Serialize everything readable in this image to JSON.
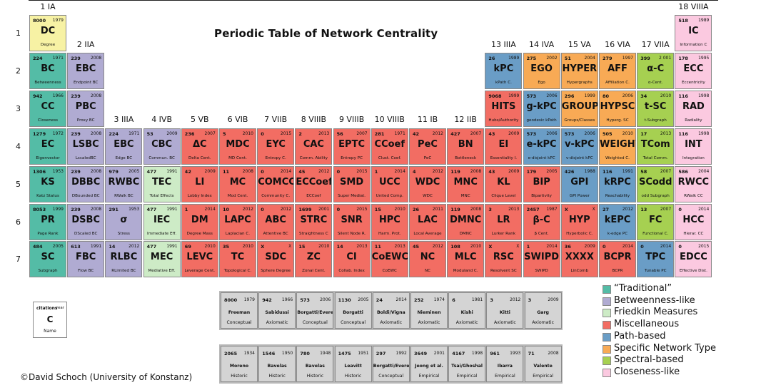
{
  "title": "Periodic Table of Network Centrality",
  "credit": "©David Schoch (University of Konstanz)",
  "colors": {
    "trad": "#54bca6",
    "betw": "#b0abd2",
    "fried": "#cdebc6",
    "misc": "#f26d63",
    "path": "#6a9dc6",
    "spec": "#f8aa55",
    "spect": "#a6d051",
    "close": "#fbc9e0",
    "cond": "#f7f2a4"
  },
  "group_headers": [
    "1 IA",
    "2 IIA",
    "3 IIIA",
    "4 IVB",
    "5 VB",
    "6 VIB",
    "7 VIIB",
    "8 VIIIB",
    "9 VIIIB",
    "10 VIIIB",
    "11 IB",
    "12 IIB",
    "13 IIIA",
    "14 IVA",
    "15 VA",
    "16 VIA",
    "17 VIIA",
    "18 VIIIA"
  ],
  "row_headers": [
    "1",
    "2",
    "3",
    "4",
    "5",
    "6",
    "7"
  ],
  "elements": [
    {
      "col": 1,
      "row": 1,
      "cat": "cond",
      "cit": "8000",
      "yr": "1979",
      "sym": "DC",
      "nm": "Degree"
    },
    {
      "col": 18,
      "row": 1,
      "cat": "close",
      "cit": "518",
      "yr": "1989",
      "sym": "IC",
      "nm": "Information C"
    },
    {
      "col": 1,
      "row": 2,
      "cat": "trad",
      "cit": "224",
      "yr": "1971",
      "sym": "BC",
      "nm": "Betweenness"
    },
    {
      "col": 2,
      "row": 2,
      "cat": "betw",
      "cit": "239",
      "yr": "2008",
      "sym": "EBC",
      "nm": "Endpoint BC"
    },
    {
      "col": 13,
      "row": 2,
      "cat": "path",
      "cit": "26",
      "yr": "1989",
      "sym": "kPC",
      "nm": "kPath C."
    },
    {
      "col": 14,
      "row": 2,
      "cat": "spec",
      "cit": "275",
      "yr": "2002",
      "sym": "EGO",
      "nm": "Ego"
    },
    {
      "col": 15,
      "row": 2,
      "cat": "spec",
      "cit": "51",
      "yr": "2004",
      "sym": "HYPER",
      "nm": "Hypergraphs"
    },
    {
      "col": 16,
      "row": 2,
      "cat": "spec",
      "cit": "279",
      "yr": "1997",
      "sym": "AFF",
      "nm": "Affiliation C."
    },
    {
      "col": 17,
      "row": 2,
      "cat": "spect",
      "cit": "399",
      "yr": "2 001",
      "sym": "α-C",
      "nm": "α-Cent."
    },
    {
      "col": 18,
      "row": 2,
      "cat": "close",
      "cit": "178",
      "yr": "1995",
      "sym": "ECC",
      "nm": "Eccentricity"
    },
    {
      "col": 1,
      "row": 3,
      "cat": "trad",
      "cit": "942",
      "yr": "1966",
      "sym": "CC",
      "nm": "Closeness"
    },
    {
      "col": 2,
      "row": 3,
      "cat": "betw",
      "cit": "239",
      "yr": "2008",
      "sym": "PBC",
      "nm": "Proxy BC"
    },
    {
      "col": 13,
      "row": 3,
      "cat": "misc",
      "cit": "9068",
      "yr": "1999",
      "sym": "HITS",
      "nm": "Hubs/Authority"
    },
    {
      "col": 14,
      "row": 3,
      "cat": "path",
      "cit": "573",
      "yr": "2006",
      "sym": "g-kPC",
      "nm": "geodesic kPath"
    },
    {
      "col": 15,
      "row": 3,
      "cat": "spec",
      "cit": "296",
      "yr": "1999",
      "sym": "GROUP",
      "nm": "Groups/Classes"
    },
    {
      "col": 16,
      "row": 3,
      "cat": "spec",
      "cit": "80",
      "yr": "2006",
      "sym": "HYPSC",
      "nm": "Hyperg. SC"
    },
    {
      "col": 17,
      "row": 3,
      "cat": "spect",
      "cit": "34",
      "yr": "2010",
      "sym": "t-SC",
      "nm": "t-Subgraph"
    },
    {
      "col": 18,
      "row": 3,
      "cat": "close",
      "cit": "116",
      "yr": "1998",
      "sym": "RAD",
      "nm": "Radiality"
    },
    {
      "col": 1,
      "row": 4,
      "cat": "trad",
      "cit": "1279",
      "yr": "1972",
      "sym": "EC",
      "nm": "Eigenvector"
    },
    {
      "col": 2,
      "row": 4,
      "cat": "betw",
      "cit": "239",
      "yr": "2008",
      "sym": "LSBC",
      "nm": "LscaledBC"
    },
    {
      "col": 3,
      "row": 4,
      "cat": "betw",
      "cit": "224",
      "yr": "1971",
      "sym": "EBC",
      "nm": "Edge BC"
    },
    {
      "col": 4,
      "row": 4,
      "cat": "betw",
      "cit": "53",
      "yr": "2009",
      "sym": "CBC",
      "nm": "Commun. BC"
    },
    {
      "col": 5,
      "row": 4,
      "cat": "misc",
      "cit": "236",
      "yr": "2007",
      "sym": "ΔC",
      "nm": "Delta Cent."
    },
    {
      "col": 6,
      "row": 4,
      "cat": "misc",
      "cit": "5",
      "yr": "2010",
      "sym": "MDC",
      "nm": "MD Cent."
    },
    {
      "col": 7,
      "row": 4,
      "cat": "misc",
      "cit": "0",
      "yr": "2015",
      "sym": "EYC",
      "nm": "Entropy C."
    },
    {
      "col": 8,
      "row": 4,
      "cat": "misc",
      "cit": "2",
      "yr": "2013",
      "sym": "CAC",
      "nm": "Comm. Ability"
    },
    {
      "col": 9,
      "row": 4,
      "cat": "misc",
      "cit": "56",
      "yr": "2007",
      "sym": "EPTC",
      "nm": "Entropy PC"
    },
    {
      "col": 10,
      "row": 4,
      "cat": "misc",
      "cit": "281",
      "yr": "1971",
      "sym": "CCoef",
      "nm": "Clust. Coef."
    },
    {
      "col": 11,
      "row": 4,
      "cat": "misc",
      "cit": "42",
      "yr": "2012",
      "sym": "PeC",
      "nm": "PeC"
    },
    {
      "col": 12,
      "row": 4,
      "cat": "misc",
      "cit": "427",
      "yr": "2007",
      "sym": "BN",
      "nm": "Bottleneck"
    },
    {
      "col": 13,
      "row": 4,
      "cat": "misc",
      "cit": "43",
      "yr": "2009",
      "sym": "EI",
      "nm": "Essentiality I."
    },
    {
      "col": 14,
      "row": 4,
      "cat": "path",
      "cit": "573",
      "yr": "2006",
      "sym": "e-kPC",
      "nm": "e-disjoint kPC"
    },
    {
      "col": 15,
      "row": 4,
      "cat": "path",
      "cit": "573",
      "yr": "2006",
      "sym": "v-kPC",
      "nm": "v-disjoint kPC"
    },
    {
      "col": 16,
      "row": 4,
      "cat": "spec",
      "cit": "505",
      "yr": "2010",
      "sym": "WEIGHT",
      "nm": "Weighted C."
    },
    {
      "col": 17,
      "row": 4,
      "cat": "spect",
      "cit": "17",
      "yr": "2013",
      "sym": "TCom",
      "nm": "Total Comm."
    },
    {
      "col": 18,
      "row": 4,
      "cat": "close",
      "cit": "116",
      "yr": "1998",
      "sym": "INT",
      "nm": "Integration"
    },
    {
      "col": 1,
      "row": 5,
      "cat": "trad",
      "cit": "1306",
      "yr": "1953",
      "sym": "KS",
      "nm": "Katz Status"
    },
    {
      "col": 2,
      "row": 5,
      "cat": "betw",
      "cit": "239",
      "yr": "2008",
      "sym": "DBBC",
      "nm": "DBounded BC"
    },
    {
      "col": 3,
      "row": 5,
      "cat": "betw",
      "cit": "979",
      "yr": "2005",
      "sym": "RWBC",
      "nm": "RWalk BC"
    },
    {
      "col": 4,
      "row": 5,
      "cat": "fried",
      "cit": "477",
      "yr": "1991",
      "sym": "TEC",
      "nm": "Total Effects"
    },
    {
      "col": 5,
      "row": 5,
      "cat": "misc",
      "cit": "42",
      "yr": "2009",
      "sym": "LI",
      "nm": "Lobby Index"
    },
    {
      "col": 6,
      "row": 5,
      "cat": "misc",
      "cit": "11",
      "yr": "2008",
      "sym": "MC",
      "nm": "Mod Cent."
    },
    {
      "col": 7,
      "row": 5,
      "cat": "misc",
      "cit": "0",
      "yr": "2014",
      "sym": "COMCC",
      "nm": "Community C."
    },
    {
      "col": 8,
      "row": 5,
      "cat": "misc",
      "cit": "45",
      "yr": "2012",
      "sym": "ECCoef",
      "nm": "ECCoef"
    },
    {
      "col": 9,
      "row": 5,
      "cat": "misc",
      "cit": "0",
      "yr": "2015",
      "sym": "SMD",
      "nm": "Super Mediat."
    },
    {
      "col": 10,
      "row": 5,
      "cat": "misc",
      "cit": "1",
      "yr": "2014",
      "sym": "UCC",
      "nm": "United Comp."
    },
    {
      "col": 11,
      "row": 5,
      "cat": "misc",
      "cit": "4",
      "yr": "2012",
      "sym": "WDC",
      "nm": "WDC"
    },
    {
      "col": 12,
      "row": 5,
      "cat": "misc",
      "cit": "119",
      "yr": "2008",
      "sym": "MNC",
      "nm": "MNC"
    },
    {
      "col": 13,
      "row": 5,
      "cat": "misc",
      "cit": "43",
      "yr": "2009",
      "sym": "KL",
      "nm": "Clique Level"
    },
    {
      "col": 14,
      "row": 5,
      "cat": "misc",
      "cit": "179",
      "yr": "2005",
      "sym": "BIP",
      "nm": "Bipartivity"
    },
    {
      "col": 15,
      "row": 5,
      "cat": "path",
      "cit": "426",
      "yr": "1988",
      "sym": "GPI",
      "nm": "GPI Power"
    },
    {
      "col": 16,
      "row": 5,
      "cat": "path",
      "cit": "116",
      "yr": "1991",
      "sym": "kRPC",
      "nm": "Reachability"
    },
    {
      "col": 17,
      "row": 5,
      "cat": "spect",
      "cit": "58",
      "yr": "2007",
      "sym": "SCodd",
      "nm": "odd Subgraph"
    },
    {
      "col": 18,
      "row": 5,
      "cat": "close",
      "cit": "586",
      "yr": "2004",
      "sym": "RWCC",
      "nm": "RWalk CC"
    },
    {
      "col": 1,
      "row": 6,
      "cat": "trad",
      "cit": "8053",
      "yr": "1999",
      "sym": "PR",
      "nm": "Page Rank"
    },
    {
      "col": 2,
      "row": 6,
      "cat": "betw",
      "cit": "239",
      "yr": "2008",
      "sym": "DSBC",
      "nm": "DScaled BC"
    },
    {
      "col": 3,
      "row": 6,
      "cat": "betw",
      "cit": "291",
      "yr": "1953",
      "sym": "σ",
      "nm": "Stress"
    },
    {
      "col": 4,
      "row": 6,
      "cat": "fried",
      "cit": "477",
      "yr": "1991",
      "sym": "IEC",
      "nm": "Immediate Eff."
    },
    {
      "col": 5,
      "row": 6,
      "cat": "misc",
      "cit": "1",
      "yr": "2014",
      "sym": "DM",
      "nm": "Degree Mass"
    },
    {
      "col": 6,
      "row": 6,
      "cat": "misc",
      "cit": "10",
      "yr": "2012",
      "sym": "LAPC",
      "nm": "Laplacian C."
    },
    {
      "col": 7,
      "row": 6,
      "cat": "misc",
      "cit": "0",
      "yr": "2012",
      "sym": "ABC",
      "nm": "Attentive BC"
    },
    {
      "col": 8,
      "row": 6,
      "cat": "misc",
      "cit": "1699",
      "yr": "2001",
      "sym": "STRC",
      "nm": "Straightness C"
    },
    {
      "col": 9,
      "row": 6,
      "cat": "misc",
      "cit": "0",
      "yr": "2015",
      "sym": "SNR",
      "nm": "Silent Node R."
    },
    {
      "col": 10,
      "row": 6,
      "cat": "misc",
      "cit": "15",
      "yr": "2010",
      "sym": "HPC",
      "nm": "Harm. Prot."
    },
    {
      "col": 11,
      "row": 6,
      "cat": "misc",
      "cit": "26",
      "yr": "2011",
      "sym": "LAC",
      "nm": "Local Average"
    },
    {
      "col": 12,
      "row": 6,
      "cat": "misc",
      "cit": "119",
      "yr": "2008",
      "sym": "DMNC",
      "nm": "DMNC"
    },
    {
      "col": 13,
      "row": 6,
      "cat": "misc",
      "cit": "3",
      "yr": "2013",
      "sym": "LR",
      "nm": "Lurker Rank"
    },
    {
      "col": 14,
      "row": 6,
      "cat": "misc",
      "cit": "2457",
      "yr": "1987",
      "sym": "β-C",
      "nm": "β Cent."
    },
    {
      "col": 15,
      "row": 6,
      "cat": "misc",
      "cit": "X",
      "yr": "X",
      "sym": "HYP",
      "nm": "Hyperbolic C."
    },
    {
      "col": 16,
      "row": 6,
      "cat": "path",
      "cit": "27",
      "yr": "2012",
      "sym": "kEPC",
      "nm": "k-edge PC"
    },
    {
      "col": 17,
      "row": 6,
      "cat": "spect",
      "cit": "13",
      "yr": "2007",
      "sym": "FC",
      "nm": "Functional C."
    },
    {
      "col": 18,
      "row": 6,
      "cat": "close",
      "cit": "0",
      "yr": "2014",
      "sym": "HCC",
      "nm": "Hierar. CC"
    },
    {
      "col": 1,
      "row": 7,
      "cat": "trad",
      "cit": "484",
      "yr": "2005",
      "sym": "SC",
      "nm": "Subgraph"
    },
    {
      "col": 2,
      "row": 7,
      "cat": "betw",
      "cit": "613",
      "yr": "1991",
      "sym": "FBC",
      "nm": "Flow BC"
    },
    {
      "col": 3,
      "row": 7,
      "cat": "betw",
      "cit": "14",
      "yr": "2012",
      "sym": "RLBC",
      "nm": "RLimited BC"
    },
    {
      "col": 4,
      "row": 7,
      "cat": "fried",
      "cit": "477",
      "yr": "1991",
      "sym": "MEC",
      "nm": "Mediative Eff."
    },
    {
      "col": 5,
      "row": 7,
      "cat": "misc",
      "cit": "69",
      "yr": "2010",
      "sym": "LEVC",
      "nm": "Leverage Cent."
    },
    {
      "col": 6,
      "row": 7,
      "cat": "misc",
      "cit": "35",
      "yr": "2010",
      "sym": "TC",
      "nm": "Topological C."
    },
    {
      "col": 7,
      "row": 7,
      "cat": "misc",
      "cit": "X",
      "yr": "X",
      "sym": "SDC",
      "nm": "Sphere Degree"
    },
    {
      "col": 8,
      "row": 7,
      "cat": "misc",
      "cit": "15",
      "yr": "2010",
      "sym": "ZC",
      "nm": "Zonal Cent."
    },
    {
      "col": 9,
      "row": 7,
      "cat": "misc",
      "cit": "14",
      "yr": "2013",
      "sym": "CI",
      "nm": "Collab. Index"
    },
    {
      "col": 10,
      "row": 7,
      "cat": "misc",
      "cit": "11",
      "yr": "2013",
      "sym": "CoEWC",
      "nm": "CoEWC"
    },
    {
      "col": 11,
      "row": 7,
      "cat": "misc",
      "cit": "45",
      "yr": "2012",
      "sym": "NC",
      "nm": "NC"
    },
    {
      "col": 12,
      "row": 7,
      "cat": "misc",
      "cit": "108",
      "yr": "2010",
      "sym": "MLC",
      "nm": "Moduland C."
    },
    {
      "col": 13,
      "row": 7,
      "cat": "misc",
      "cit": "X",
      "yr": "X",
      "sym": "RSC",
      "nm": "Resolvent SC"
    },
    {
      "col": 14,
      "row": 7,
      "cat": "misc",
      "cit": "1",
      "yr": "2014",
      "sym": "SWIPD",
      "nm": "SWIPD"
    },
    {
      "col": 15,
      "row": 7,
      "cat": "misc",
      "cit": "36",
      "yr": "2009",
      "sym": "XXXX",
      "nm": "LinComb"
    },
    {
      "col": 16,
      "row": 7,
      "cat": "misc",
      "cit": "0",
      "yr": "2014",
      "sym": "BCPR",
      "nm": "BCPR"
    },
    {
      "col": 17,
      "row": 7,
      "cat": "path",
      "cit": "0",
      "yr": "2014",
      "sym": "TPC",
      "nm": "Tunable PC"
    },
    {
      "col": 18,
      "row": 7,
      "cat": "close",
      "cit": "0",
      "yr": "2015",
      "sym": "EDCC",
      "nm": "Effective Dist."
    }
  ],
  "reference_rows": [
    [
      {
        "cit": "8000",
        "yr": "1979",
        "au": "Freeman",
        "ty": "Conceptual"
      },
      {
        "cit": "942",
        "yr": "1966",
        "au": "Sabidussi",
        "ty": "Axiomatic"
      },
      {
        "cit": "573",
        "yr": "2006",
        "au": "Borgatti/Everett",
        "ty": "Conceptual"
      },
      {
        "cit": "1130",
        "yr": "2005",
        "au": "Borgatti",
        "ty": "Conceptual"
      },
      {
        "cit": "24",
        "yr": "2014",
        "au": "Boldi/Vigna",
        "ty": "Axiomatic"
      },
      {
        "cit": "252",
        "yr": "1974",
        "au": "Nieminen",
        "ty": "Axiomatic"
      },
      {
        "cit": "6",
        "yr": "1981",
        "au": "Kishi",
        "ty": "Axiomatic"
      },
      {
        "cit": "3",
        "yr": "2012",
        "au": "Kitti",
        "ty": "Axiomatic"
      },
      {
        "cit": "3",
        "yr": "2009",
        "au": "Garg",
        "ty": "Axiomatic"
      }
    ],
    [
      {
        "cit": "2065",
        "yr": "1934",
        "au": "Moreno",
        "ty": "Historic"
      },
      {
        "cit": "1546",
        "yr": "1950",
        "au": "Bavelas",
        "ty": "Historic"
      },
      {
        "cit": "780",
        "yr": "1948",
        "au": "Bavelas",
        "ty": "Historic"
      },
      {
        "cit": "1475",
        "yr": "1951",
        "au": "Leavitt",
        "ty": "Historic"
      },
      {
        "cit": "297",
        "yr": "1992",
        "au": "Borgatti/Everett",
        "ty": "Conceptual"
      },
      {
        "cit": "3649",
        "yr": "2001",
        "au": "Jeong et al.",
        "ty": "Empirical"
      },
      {
        "cit": "4167",
        "yr": "1998",
        "au": "Tsai/Ghoshal",
        "ty": "Empirical"
      },
      {
        "cit": "961",
        "yr": "1993",
        "au": "Ibarra",
        "ty": "Empirical"
      },
      {
        "cit": "71",
        "yr": "2008",
        "au": "Valente",
        "ty": "Empirical"
      }
    ]
  ],
  "key": {
    "citations": "citations",
    "year": "year",
    "symbol": "C",
    "name": "Name"
  },
  "legend": [
    {
      "label": "“Traditional”",
      "cat": "trad"
    },
    {
      "label": "Betweenness-like",
      "cat": "betw"
    },
    {
      "label": "Friedkin Measures",
      "cat": "fried"
    },
    {
      "label": "Miscellaneous",
      "cat": "misc"
    },
    {
      "label": "Path-based",
      "cat": "path"
    },
    {
      "label": "Specific Network Type",
      "cat": "spec"
    },
    {
      "label": "Spectral-based",
      "cat": "spect"
    },
    {
      "label": "Closeness-like",
      "cat": "close"
    }
  ]
}
